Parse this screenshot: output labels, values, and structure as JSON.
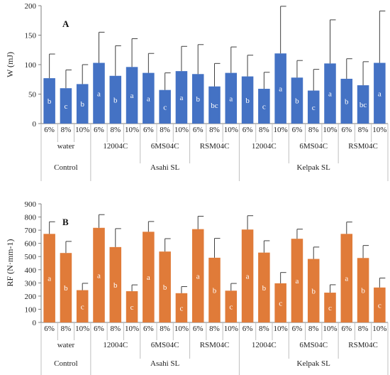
{
  "chart_data": [
    {
      "type": "bar",
      "panel_label": "A",
      "ylabel": "W (mJ)",
      "ylim": [
        0,
        200
      ],
      "yticks": [
        0,
        50,
        100,
        150,
        200
      ],
      "categories": [
        "6%",
        "8%",
        "10%",
        "6%",
        "8%",
        "10%",
        "6%",
        "8%",
        "10%",
        "6%",
        "8%",
        "10%",
        "6%",
        "8%",
        "10%",
        "6%",
        "8%",
        "10%",
        "6%",
        "8%",
        "10%"
      ],
      "group_labels": [
        "water",
        "12004C",
        "6MS04C",
        "RSM04C",
        "12004C",
        "6MS04C",
        "RSM04C"
      ],
      "super_groups": [
        {
          "label": "Control",
          "groups": 1
        },
        {
          "label": "Asahi SL",
          "groups": 3
        },
        {
          "label": "Kelpak SL",
          "groups": 3
        }
      ],
      "series": [
        {
          "values": [
            77,
            60,
            67,
            103,
            81,
            96,
            86,
            57,
            89,
            84,
            63,
            86,
            80,
            59,
            119,
            78,
            56,
            102,
            76,
            65,
            103
          ],
          "errors": [
            41,
            31,
            33,
            52,
            51,
            48,
            33,
            29,
            42,
            50,
            39,
            44,
            36,
            28,
            80,
            29,
            36,
            74,
            34,
            40,
            88
          ],
          "letters": [
            "b",
            "c",
            "b",
            "a",
            "b",
            "a",
            "a",
            "c",
            "a",
            "b",
            "bc",
            "a",
            "b",
            "c",
            "a",
            "b",
            "c",
            "a",
            "b",
            "bc",
            "a"
          ]
        }
      ],
      "bar_color": "#4472C4",
      "grid": false
    },
    {
      "type": "bar",
      "panel_label": "B",
      "ylabel": "RF (N·mm-1)",
      "ylim": [
        0,
        900
      ],
      "yticks": [
        0,
        100,
        200,
        300,
        400,
        500,
        600,
        700,
        800,
        900
      ],
      "categories": [
        "6%",
        "8%",
        "10%",
        "6%",
        "8%",
        "10%",
        "6%",
        "8%",
        "10%",
        "6%",
        "8%",
        "10%",
        "6%",
        "8%",
        "10%",
        "6%",
        "8%",
        "10%",
        "6%",
        "8%",
        "10%"
      ],
      "group_labels": [
        "water",
        "12004C",
        "6MS04C",
        "RSM04C",
        "12004C",
        "6MS04C",
        "RSM04C"
      ],
      "super_groups": [
        {
          "label": "Control",
          "groups": 1
        },
        {
          "label": "Asahi SL",
          "groups": 3
        },
        {
          "label": "Kelpak SL",
          "groups": 3
        }
      ],
      "series": [
        {
          "values": [
            672,
            527,
            245,
            718,
            572,
            237,
            688,
            538,
            222,
            708,
            491,
            241,
            705,
            530,
            297,
            635,
            482,
            226,
            672,
            489,
            265
          ],
          "errors": [
            92,
            88,
            52,
            100,
            140,
            48,
            78,
            98,
            50,
            98,
            147,
            55,
            105,
            90,
            82,
            73,
            90,
            60,
            90,
            95,
            72
          ],
          "letters": [
            "a",
            "b",
            "c",
            "a",
            "b",
            "c",
            "a",
            "b",
            "c",
            "a",
            "b",
            "c",
            "a",
            "b",
            "c",
            "a",
            "b",
            "c",
            "a",
            "b",
            "c"
          ]
        }
      ],
      "bar_color": "#E07B39",
      "grid": false
    }
  ]
}
